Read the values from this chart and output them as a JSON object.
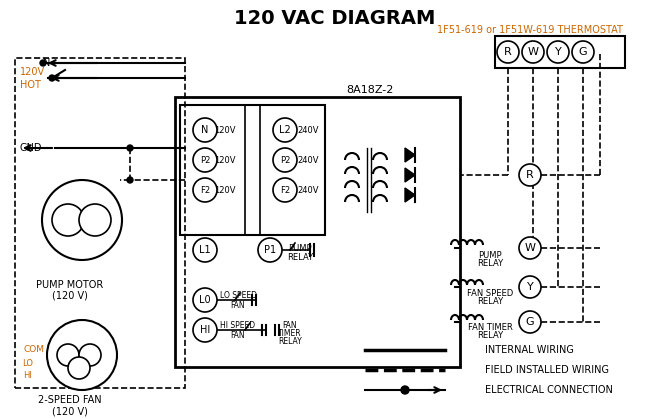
{
  "title": "120 VAC DIAGRAM",
  "title_fontsize": 16,
  "title_bold": true,
  "bg_color": "#ffffff",
  "line_color": "#000000",
  "orange_color": "#cc6600",
  "thermostat_label": "1F51-619 or 1F51W-619 THERMOSTAT",
  "control_box_label": "8A18Z-2",
  "legend_items": [
    {
      "label": "INTERNAL WIRING",
      "style": "solid"
    },
    {
      "label": "FIELD INSTALLED WIRING",
      "style": "dashed"
    },
    {
      "label": "ELECTRICAL CONNECTION",
      "style": "dot_arrow"
    }
  ]
}
